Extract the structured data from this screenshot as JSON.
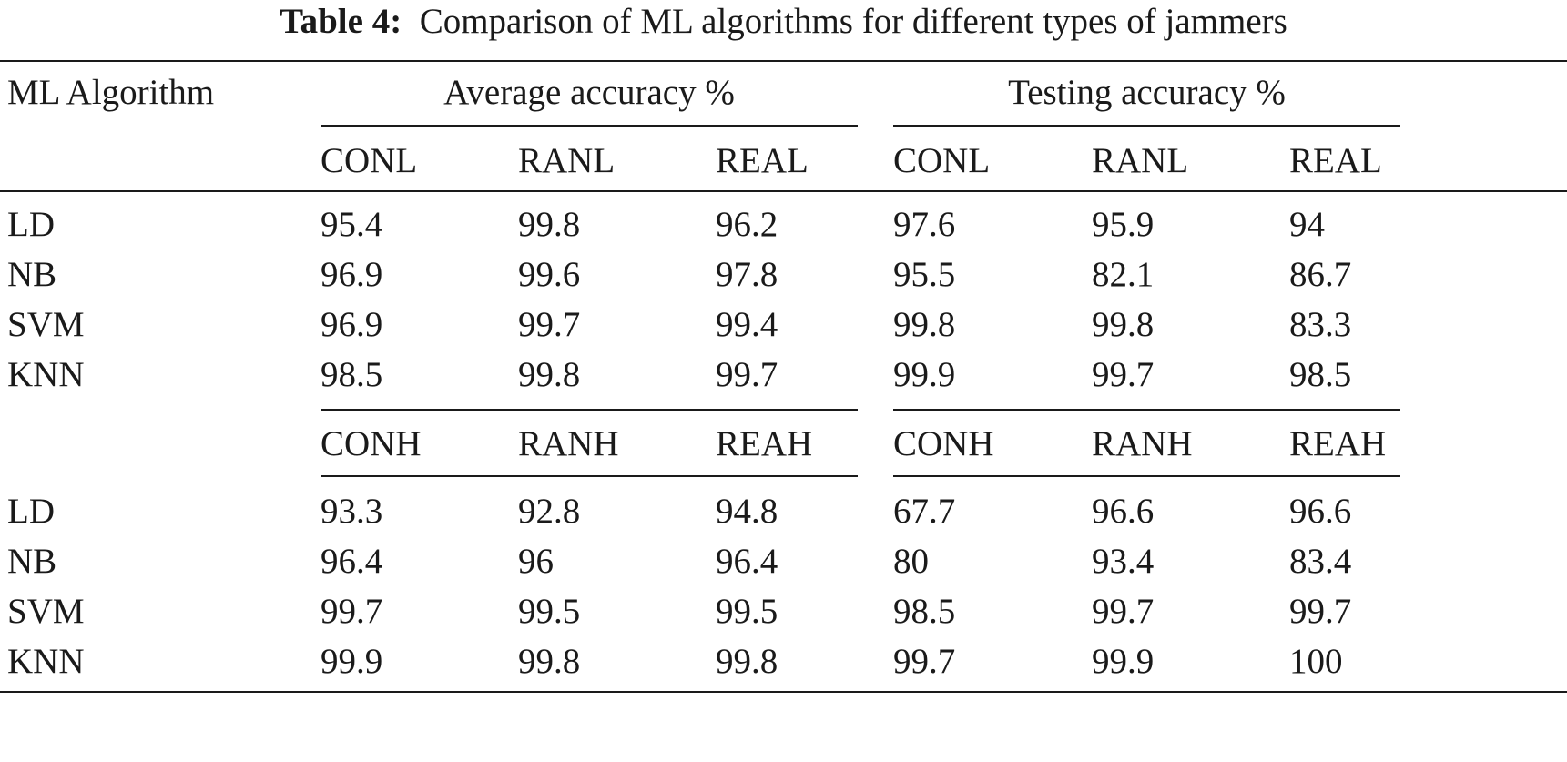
{
  "caption": {
    "label": "Table 4:",
    "text": "Comparison of ML algorithms for different types of jammers"
  },
  "table": {
    "row_header": "ML Algorithm",
    "groups": [
      "Average accuracy %",
      "Testing accuracy %"
    ],
    "blocks": [
      {
        "columns": [
          "CONL",
          "RANL",
          "REAL",
          "CONL",
          "RANL",
          "REAL"
        ],
        "rows": [
          {
            "algorithm": "LD",
            "values": [
              "95.4",
              "99.8",
              "96.2",
              "97.6",
              "95.9",
              "94"
            ]
          },
          {
            "algorithm": "NB",
            "values": [
              "96.9",
              "99.6",
              "97.8",
              "95.5",
              "82.1",
              "86.7"
            ]
          },
          {
            "algorithm": "SVM",
            "values": [
              "96.9",
              "99.7",
              "99.4",
              "99.8",
              "99.8",
              "83.3"
            ]
          },
          {
            "algorithm": "KNN",
            "values": [
              "98.5",
              "99.8",
              "99.7",
              "99.9",
              "99.7",
              "98.5"
            ]
          }
        ]
      },
      {
        "columns": [
          "CONH",
          "RANH",
          "REAH",
          "CONH",
          "RANH",
          "REAH"
        ],
        "rows": [
          {
            "algorithm": "LD",
            "values": [
              "93.3",
              "92.8",
              "94.8",
              "67.7",
              "96.6",
              "96.6"
            ]
          },
          {
            "algorithm": "NB",
            "values": [
              "96.4",
              "96",
              "96.4",
              "80",
              "93.4",
              "83.4"
            ]
          },
          {
            "algorithm": "SVM",
            "values": [
              "99.7",
              "99.5",
              "99.5",
              "98.5",
              "99.7",
              "99.7"
            ]
          },
          {
            "algorithm": "KNN",
            "values": [
              "99.9",
              "99.8",
              "99.8",
              "99.7",
              "99.9",
              "100"
            ]
          }
        ]
      }
    ]
  }
}
